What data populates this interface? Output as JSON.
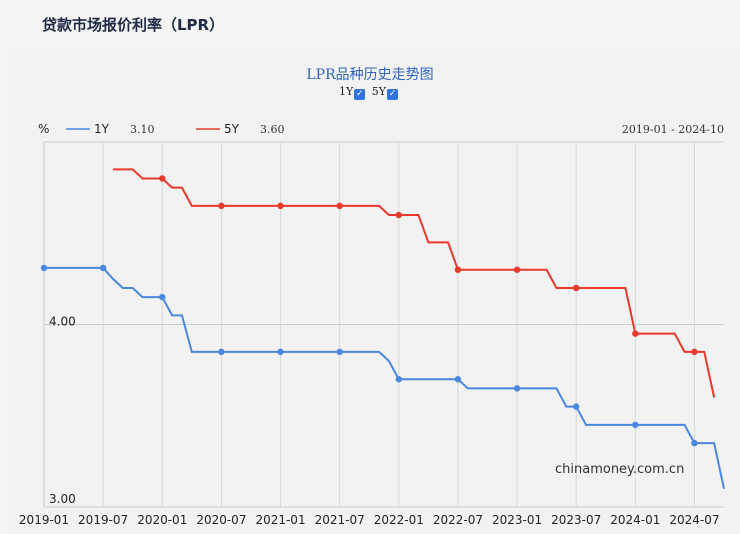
{
  "page_title": "贷款市场报价利率（LPR）",
  "chart_data": {
    "type": "line",
    "title": "LPR品种历史走势图",
    "ylabel": "%",
    "ylim": [
      3.0,
      5.0
    ],
    "y_ticks": [
      "4.00",
      "3.00"
    ],
    "y_tick_values": [
      4.0,
      3.0
    ],
    "x_tick_labels": [
      "2019-01",
      "2019-07",
      "2020-01",
      "2020-07",
      "2021-01",
      "2021-07",
      "2022-01",
      "2022-07",
      "2023-01",
      "2023-07",
      "2024-01",
      "2024-07"
    ],
    "date_range": "2019-01 - 2024-10",
    "watermark": "chinamoney.com.cn",
    "x_start": "2019-01",
    "months": 70,
    "series": [
      {
        "name": "1Y",
        "latest": "3.10",
        "color": "#4a88e0",
        "start_index": 0,
        "values": [
          4.31,
          4.31,
          4.31,
          4.31,
          4.31,
          4.31,
          4.31,
          4.25,
          4.2,
          4.2,
          4.15,
          4.15,
          4.15,
          4.05,
          4.05,
          3.85,
          3.85,
          3.85,
          3.85,
          3.85,
          3.85,
          3.85,
          3.85,
          3.85,
          3.85,
          3.85,
          3.85,
          3.85,
          3.85,
          3.85,
          3.85,
          3.85,
          3.85,
          3.85,
          3.85,
          3.8,
          3.7,
          3.7,
          3.7,
          3.7,
          3.7,
          3.7,
          3.7,
          3.65,
          3.65,
          3.65,
          3.65,
          3.65,
          3.65,
          3.65,
          3.65,
          3.65,
          3.65,
          3.55,
          3.55,
          3.45,
          3.45,
          3.45,
          3.45,
          3.45,
          3.45,
          3.45,
          3.45,
          3.45,
          3.45,
          3.45,
          3.35,
          3.35,
          3.35,
          3.1
        ]
      },
      {
        "name": "5Y",
        "latest": "3.60",
        "color": "#e8392c",
        "start_index": 7,
        "values": [
          4.85,
          4.85,
          4.85,
          4.8,
          4.8,
          4.8,
          4.75,
          4.75,
          4.65,
          4.65,
          4.65,
          4.65,
          4.65,
          4.65,
          4.65,
          4.65,
          4.65,
          4.65,
          4.65,
          4.65,
          4.65,
          4.65,
          4.65,
          4.65,
          4.65,
          4.65,
          4.65,
          4.65,
          4.6,
          4.6,
          4.6,
          4.6,
          4.45,
          4.45,
          4.45,
          4.3,
          4.3,
          4.3,
          4.3,
          4.3,
          4.3,
          4.3,
          4.3,
          4.3,
          4.3,
          4.2,
          4.2,
          4.2,
          4.2,
          4.2,
          4.2,
          4.2,
          4.2,
          3.95,
          3.95,
          3.95,
          3.95,
          3.95,
          3.85,
          3.85,
          3.85,
          3.6
        ]
      }
    ]
  }
}
